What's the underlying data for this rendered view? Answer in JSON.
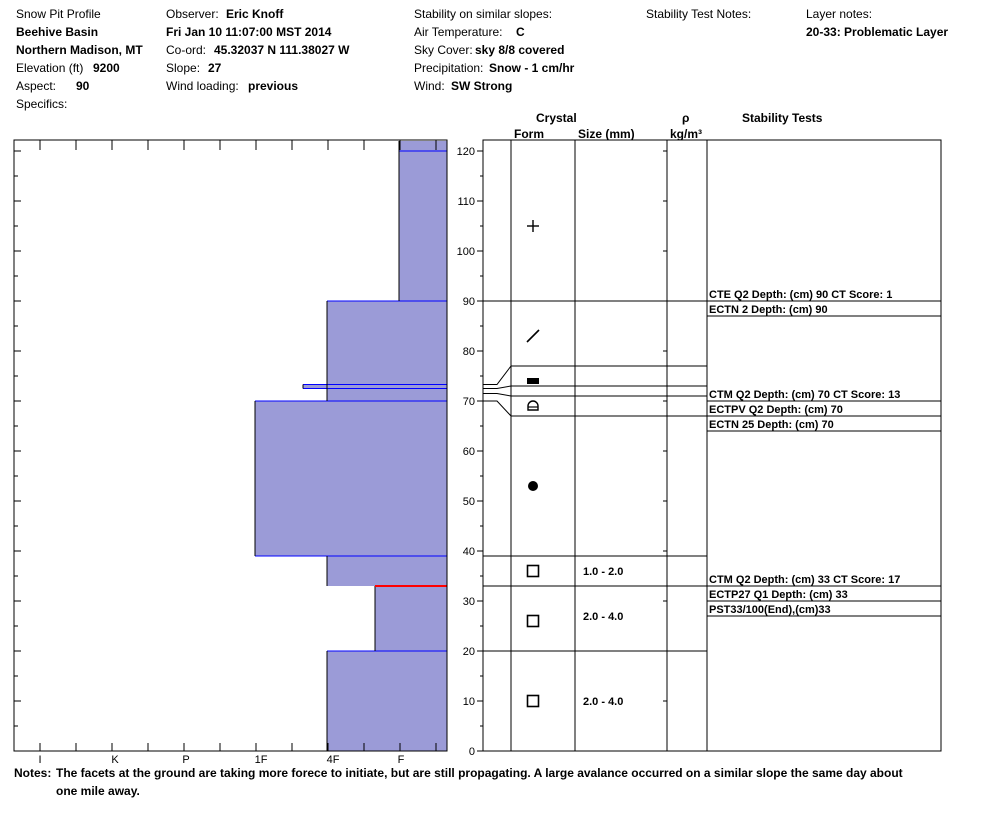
{
  "header": {
    "title": "Snow Pit Profile",
    "location": "Beehive Basin",
    "region": "Northern Madison, MT",
    "elevation_label": "Elevation (ft)",
    "elevation_value": "9200",
    "aspect_label": "Aspect:",
    "aspect_value": "90",
    "specifics_label": "Specifics:",
    "observer_label": "Observer:",
    "observer_value": "Eric Knoff",
    "date": "Fri Jan 10 11:07:00 MST 2014",
    "coord_label": "Co-ord:",
    "coord_value": "45.32037 N 111.38027 W",
    "slope_label": "Slope:",
    "slope_value": "27",
    "wind_loading_label": "Wind loading:",
    "wind_loading_value": "previous",
    "stability_label": "Stability on similar slopes:",
    "air_temp_label": "Air Temperature:",
    "air_temp_value": "C",
    "sky_label": "Sky Cover:",
    "sky_value": "sky 8/8 covered",
    "precip_label": "Precipitation:",
    "precip_value": "Snow - 1 cm/hr",
    "wind_label": "Wind:",
    "wind_value": "SW Strong",
    "test_notes_label": "Stability Test Notes:",
    "layer_notes_label": "Layer notes:",
    "layer_notes_value": "20-33: Problematic Layer"
  },
  "columns": {
    "crystal": "Crystal",
    "form": "Form",
    "size": "Size (mm)",
    "density_symbol": "ρ",
    "density_unit": "kg/m³",
    "stability_tests": "Stability Tests"
  },
  "notes": {
    "label": "Notes:",
    "text": "The facets at the ground are taking more forece to initiate, but are still propagating. A large avalance occurred on a similar slope the same day about one mile away."
  },
  "chart_data": {
    "type": "snow-profile",
    "y_axis": {
      "min": 0,
      "max": 120,
      "ticks": [
        0,
        10,
        20,
        30,
        40,
        50,
        60,
        70,
        80,
        90,
        100,
        110,
        120
      ]
    },
    "hardness_scale": [
      "I",
      "K",
      "P",
      "1F",
      "4F",
      "F"
    ],
    "hardness_layers": [
      {
        "bottom": 90,
        "top": 122,
        "hardness": "F"
      },
      {
        "bottom": 70,
        "top": 90,
        "hardness": "4F"
      },
      {
        "bottom": 72.5,
        "top": 73.3,
        "hardness": "4F+"
      },
      {
        "bottom": 39,
        "top": 70,
        "hardness": "1F"
      },
      {
        "bottom": 33,
        "top": 39,
        "hardness": "4F"
      },
      {
        "bottom": 20,
        "top": 33,
        "hardness": "4F-F"
      },
      {
        "bottom": 0,
        "top": 20,
        "hardness": "4F"
      }
    ],
    "weak_layer_depth": 33,
    "weak_layer_color": "#ff0000",
    "layer_fill_color": "#9b9bd7",
    "layer_edge_color": "#0000ff",
    "layer_boundaries": [
      90,
      77,
      73,
      71,
      67,
      39,
      33,
      20
    ],
    "grain_forms": [
      {
        "height": 105,
        "symbol": "plus-icon"
      },
      {
        "height": 83,
        "symbol": "slash-icon"
      },
      {
        "height": 74,
        "symbol": "filled-rect-icon"
      },
      {
        "height": 69,
        "symbol": "half-circle-icon"
      },
      {
        "height": 53,
        "symbol": "filled-circle-icon"
      },
      {
        "height": 36,
        "symbol": "square-icon"
      },
      {
        "height": 26,
        "symbol": "square-icon"
      },
      {
        "height": 10,
        "symbol": "square-icon"
      }
    ],
    "grain_sizes": [
      {
        "height": 36,
        "size": "1.0 - 2.0"
      },
      {
        "height": 27,
        "size": "2.0 - 4.0"
      },
      {
        "height": 10,
        "size": "2.0 - 4.0"
      }
    ],
    "stability_tests": [
      {
        "height": 90,
        "lines": [
          "CTE Q2 Depth: (cm) 90 CT Score: 1",
          "ECTN 2   Depth: (cm) 90"
        ]
      },
      {
        "height": 70,
        "lines": [
          "CTM Q2 Depth: (cm) 70 CT Score: 13",
          "ECTPV Q2 Depth: (cm) 70",
          "ECTN 25   Depth: (cm) 70"
        ]
      },
      {
        "height": 33,
        "lines": [
          "CTM Q2 Depth: (cm) 33 CT Score: 17",
          "ECTP27 Q1 Depth: (cm) 33",
          "PST33/100(End),(cm)33"
        ]
      }
    ]
  }
}
